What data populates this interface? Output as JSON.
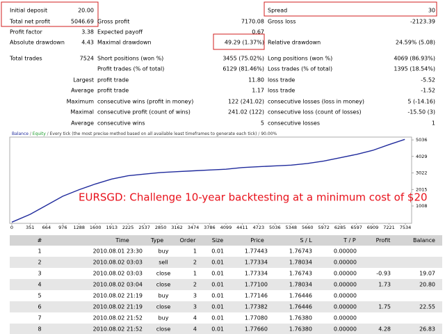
{
  "summary": {
    "rows": [
      {
        "cells": [
          {
            "label": "Initial deposit",
            "value": "20.00"
          },
          {
            "label": "Spread",
            "value": "30"
          }
        ]
      },
      {
        "cells": [
          {
            "label": "Total net profit",
            "value": "5046.69"
          },
          {
            "label": "Gross profit",
            "value": "7170.08"
          },
          {
            "label": "Gross loss",
            "value": "-2123.39"
          }
        ]
      },
      {
        "cells": [
          {
            "label": "Profit factor",
            "value": "3.38"
          },
          {
            "label": "Expected payoff",
            "value": "0.67"
          }
        ]
      },
      {
        "cells": [
          {
            "label": "Absolute drawdown",
            "value": "4.43"
          },
          {
            "label": "Maximal drawdown",
            "value": "49.29 (1.37%)"
          },
          {
            "label": "Relative drawdown",
            "value": "24.59% (5.08)"
          }
        ]
      },
      {
        "cells": [
          {
            "label": "Total trades",
            "value": "7524"
          },
          {
            "label": "Short positions (won %)",
            "value": "3455 (75.02%)"
          },
          {
            "label": "Long positions (won %)",
            "value": "4069 (86.93%)"
          }
        ]
      },
      {
        "cells": [
          {
            "label": "Profit trades (% of total)",
            "value": "6129 (81.46%)"
          },
          {
            "label": "Loss trades (% of total)",
            "value": "1395 (18.54%)"
          }
        ]
      },
      {
        "prefix": "Largest",
        "cells": [
          {
            "label": "profit trade",
            "value": "11.80"
          },
          {
            "label": "loss trade",
            "value": "-5.52"
          }
        ]
      },
      {
        "prefix": "Average",
        "cells": [
          {
            "label": "profit trade",
            "value": "1.17"
          },
          {
            "label": "loss trade",
            "value": "-1.52"
          }
        ]
      },
      {
        "prefix": "Maximum",
        "cells": [
          {
            "label": "consecutive wins (profit in money)",
            "value": "122 (241.02)"
          },
          {
            "label": "consecutive losses (loss in money)",
            "value": "5 (-14.16)"
          }
        ]
      },
      {
        "prefix": "Maximal",
        "cells": [
          {
            "label": "consecutive profit (count of wins)",
            "value": "241.02 (122)"
          },
          {
            "label": "consecutive loss (count of losses)",
            "value": "-15.50 (3)"
          }
        ]
      },
      {
        "prefix": "Average",
        "cells": [
          {
            "label": "consecutive wins",
            "value": "5"
          },
          {
            "label": "consecutive losses",
            "value": "1"
          }
        ]
      }
    ]
  },
  "chart": {
    "type": "line",
    "header": [
      "Balance",
      " / ",
      "Equity",
      " / ",
      "Every tick (the most precise method based on all available least timeframes to generate each tick)",
      " / ",
      "90.00%"
    ],
    "annotation": "EURSGD: Challenge 10-year backtesting at a minimum cost of $20",
    "color": "#1f2a9c",
    "x": [
      0,
      351,
      664,
      976,
      1288,
      1600,
      1913,
      2225,
      2537,
      2850,
      3162,
      3474,
      3786,
      4099,
      4411,
      4723,
      5036,
      5348,
      5660,
      5972,
      6285,
      6597,
      6909,
      7221,
      7524
    ],
    "values": [
      20,
      500,
      1050,
      1600,
      2000,
      2350,
      2650,
      2850,
      2950,
      3050,
      3100,
      3150,
      3200,
      3250,
      3350,
      3400,
      3450,
      3500,
      3600,
      3750,
      3950,
      4150,
      4400,
      4750,
      5066.69
    ],
    "xlim": [
      0,
      7534
    ],
    "xticks": [
      0,
      351,
      664,
      976,
      1288,
      1600,
      1913,
      2225,
      2537,
      2850,
      3162,
      3474,
      3786,
      4099,
      4411,
      4723,
      5036,
      5348,
      5660,
      5972,
      6285,
      6597,
      6909,
      7221,
      7534
    ],
    "ylim": [
      0,
      5200
    ],
    "yticks": [
      1008,
      2015,
      3022,
      4029,
      5036
    ]
  },
  "table": {
    "columns": [
      "#",
      "Time",
      "Type",
      "Order",
      "Size",
      "Price",
      "S / L",
      "T / P",
      "Profit",
      "Balance"
    ],
    "rows": [
      [
        "1",
        "2010.08.01 23:30",
        "buy",
        "1",
        "0.01",
        "1.77443",
        "1.76743",
        "0.00000",
        null,
        null
      ],
      [
        "2",
        "2010.08.02 03:03",
        "sell",
        "2",
        "0.01",
        "1.77334",
        "1.78034",
        "0.00000",
        null,
        null
      ],
      [
        "3",
        "2010.08.02 03:03",
        "close",
        "1",
        "0.01",
        "1.77334",
        "1.76743",
        "0.00000",
        "-0.93",
        "19.07"
      ],
      [
        "4",
        "2010.08.02 03:04",
        "close",
        "2",
        "0.01",
        "1.77100",
        "1.78034",
        "0.00000",
        "1.73",
        "20.80"
      ],
      [
        "5",
        "2010.08.02 21:19",
        "buy",
        "3",
        "0.01",
        "1.77146",
        "1.76446",
        "0.00000",
        null,
        null
      ],
      [
        "6",
        "2010.08.02 21:19",
        "close",
        "3",
        "0.01",
        "1.77382",
        "1.76446",
        "0.00000",
        "1.75",
        "22.55"
      ],
      [
        "7",
        "2010.08.02 21:52",
        "buy",
        "4",
        "0.01",
        "1.77080",
        "1.76380",
        "0.00000",
        null,
        null
      ],
      [
        "8",
        "2010.08.02 21:52",
        "close",
        "4",
        "0.01",
        "1.77660",
        "1.76380",
        "0.00000",
        "4.28",
        "26.83"
      ]
    ]
  }
}
